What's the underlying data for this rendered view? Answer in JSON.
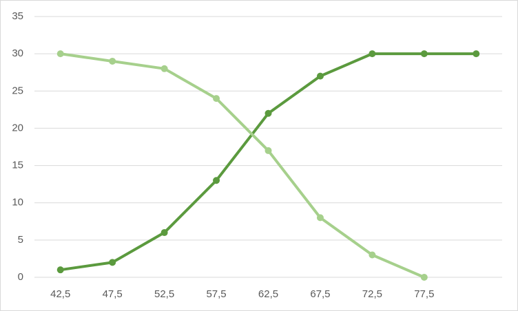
{
  "chart_data": {
    "type": "line",
    "categories": [
      "42,5",
      "47,5",
      "52,5",
      "57,5",
      "62,5",
      "67,5",
      "72,5",
      "77,5",
      null
    ],
    "series": [
      {
        "color": "#5b9a3e",
        "values": [
          1,
          2,
          6,
          13,
          22,
          27,
          30,
          30,
          30
        ]
      },
      {
        "color": "#a6d08c",
        "values": [
          30,
          29,
          28,
          24,
          17,
          8,
          3,
          0,
          null
        ]
      }
    ],
    "ylim": [
      0,
      35
    ],
    "yticks": [
      0,
      5,
      10,
      15,
      20,
      25,
      30,
      35
    ],
    "grid": true
  }
}
